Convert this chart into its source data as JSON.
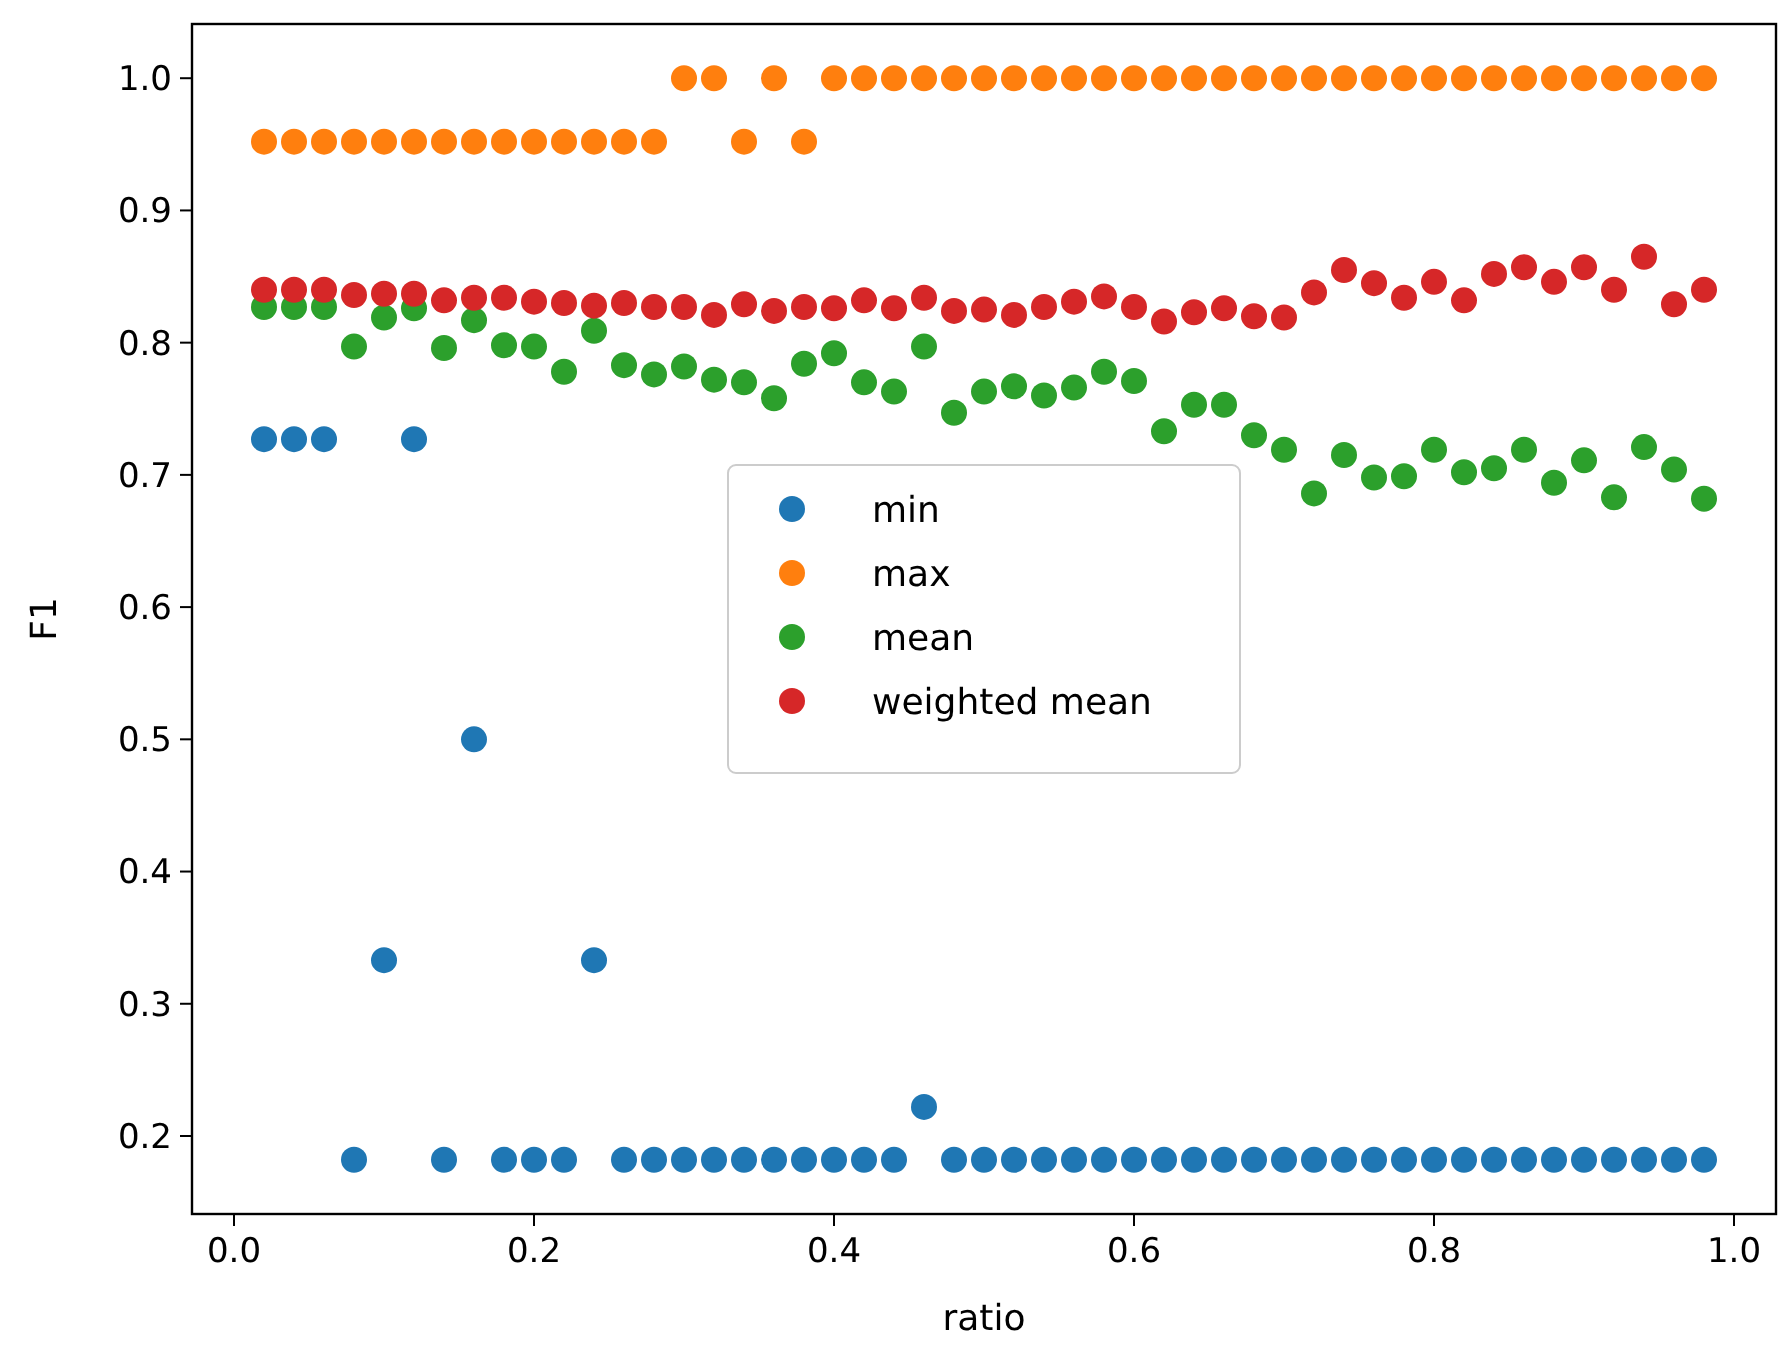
{
  "chart_data": {
    "type": "scatter",
    "xlabel": "ratio",
    "ylabel": "F1",
    "x": [
      0.02,
      0.04,
      0.06,
      0.08,
      0.1,
      0.12,
      0.14,
      0.16,
      0.18,
      0.2,
      0.22,
      0.24,
      0.26,
      0.28,
      0.3,
      0.32,
      0.34,
      0.36,
      0.38,
      0.4,
      0.42,
      0.44,
      0.46,
      0.48,
      0.5,
      0.52,
      0.54,
      0.56,
      0.58,
      0.6,
      0.62,
      0.64,
      0.66,
      0.68,
      0.7,
      0.72,
      0.74,
      0.76,
      0.78,
      0.8,
      0.82,
      0.84,
      0.86,
      0.88,
      0.9,
      0.92,
      0.94,
      0.96,
      0.98
    ],
    "series": [
      {
        "name": "min",
        "color": "#1f77b4",
        "values": [
          0.727,
          0.727,
          0.727,
          0.182,
          0.333,
          0.727,
          0.182,
          0.5,
          0.182,
          0.182,
          0.182,
          0.333,
          0.182,
          0.182,
          0.182,
          0.182,
          0.182,
          0.182,
          0.182,
          0.182,
          0.182,
          0.182,
          0.222,
          0.182,
          0.182,
          0.182,
          0.182,
          0.182,
          0.182,
          0.182,
          0.182,
          0.182,
          0.182,
          0.182,
          0.182,
          0.182,
          0.182,
          0.182,
          0.182,
          0.182,
          0.182,
          0.182,
          0.182,
          0.182,
          0.182,
          0.182,
          0.182,
          0.182,
          0.182
        ]
      },
      {
        "name": "max",
        "color": "#ff7f0e",
        "values": [
          0.952,
          0.952,
          0.952,
          0.952,
          0.952,
          0.952,
          0.952,
          0.952,
          0.952,
          0.952,
          0.952,
          0.952,
          0.952,
          0.952,
          1.0,
          1.0,
          0.952,
          1.0,
          0.952,
          1.0,
          1.0,
          1.0,
          1.0,
          1.0,
          1.0,
          1.0,
          1.0,
          1.0,
          1.0,
          1.0,
          1.0,
          1.0,
          1.0,
          1.0,
          1.0,
          1.0,
          1.0,
          1.0,
          1.0,
          1.0,
          1.0,
          1.0,
          1.0,
          1.0,
          1.0,
          1.0,
          1.0,
          1.0,
          1.0
        ]
      },
      {
        "name": "mean",
        "color": "#2ca02c",
        "values": [
          0.827,
          0.827,
          0.827,
          0.797,
          0.819,
          0.826,
          0.796,
          0.817,
          0.798,
          0.797,
          0.778,
          0.809,
          0.783,
          0.776,
          0.782,
          0.772,
          0.77,
          0.758,
          0.784,
          0.792,
          0.77,
          0.763,
          0.797,
          0.747,
          0.763,
          0.767,
          0.76,
          0.766,
          0.778,
          0.771,
          0.733,
          0.753,
          0.753,
          0.73,
          0.719,
          0.686,
          0.715,
          0.698,
          0.699,
          0.719,
          0.702,
          0.705,
          0.719,
          0.694,
          0.711,
          0.683,
          0.721,
          0.704,
          0.682
        ]
      },
      {
        "name": "weighted mean",
        "color": "#d62728",
        "values": [
          0.84,
          0.84,
          0.84,
          0.836,
          0.837,
          0.837,
          0.832,
          0.834,
          0.834,
          0.831,
          0.83,
          0.828,
          0.83,
          0.827,
          0.827,
          0.821,
          0.829,
          0.824,
          0.827,
          0.826,
          0.832,
          0.826,
          0.834,
          0.824,
          0.825,
          0.821,
          0.827,
          0.831,
          0.835,
          0.827,
          0.816,
          0.823,
          0.826,
          0.82,
          0.819,
          0.838,
          0.855,
          0.845,
          0.834,
          0.846,
          0.832,
          0.852,
          0.857,
          0.846,
          0.857,
          0.84,
          0.865,
          0.829,
          0.84
        ]
      }
    ],
    "xlim": [
      -0.028,
      1.028
    ],
    "xticks": [
      {
        "value": 0,
        "label": "0.0"
      },
      0.2,
      0.4,
      0.6,
      0.8,
      {
        "value": 1,
        "label": "1.0"
      }
    ],
    "ylim": [
      0.141,
      1.041
    ],
    "yticks": [
      0.2,
      0.3,
      0.4,
      0.5,
      0.6,
      0.7,
      0.8,
      0.9,
      {
        "value": 1,
        "label": "1.0"
      }
    ],
    "grid": false,
    "legend": "center",
    "marker": "circle"
  }
}
